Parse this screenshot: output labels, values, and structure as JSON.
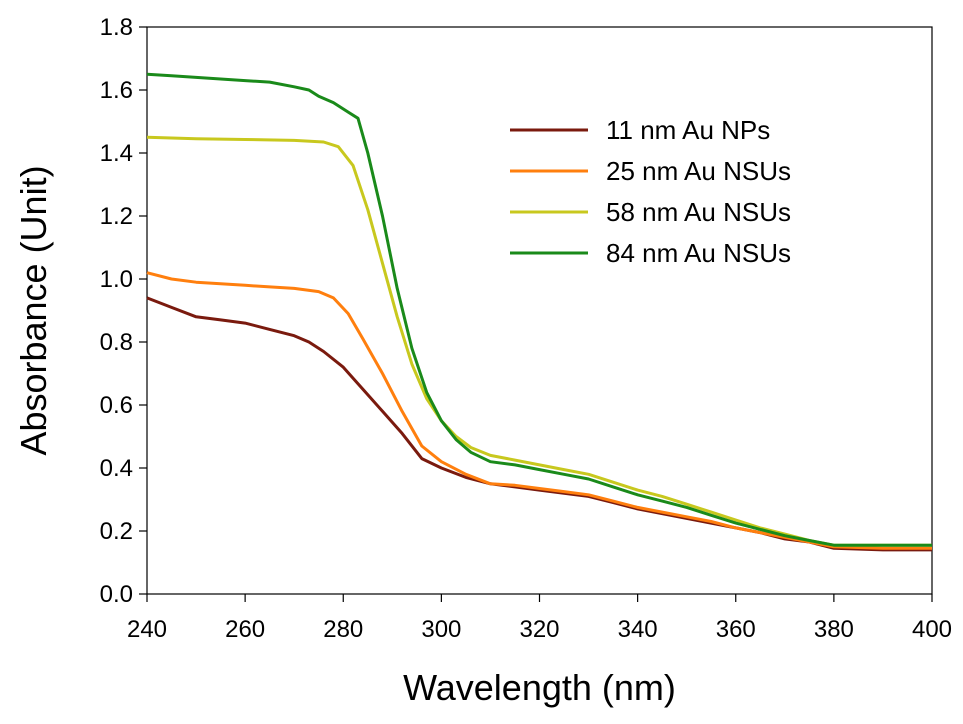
{
  "chart_data": {
    "type": "line",
    "title": "",
    "xlabel": "Wavelength (nm)",
    "ylabel": "Absorbance (Unit)",
    "xlim": [
      240,
      400
    ],
    "ylim": [
      0.0,
      1.8
    ],
    "xticks": [
      240,
      260,
      280,
      300,
      320,
      340,
      360,
      380,
      400
    ],
    "xtick_labels": [
      "240",
      "260",
      "280",
      "300",
      "320",
      "340",
      "360",
      "380",
      "400"
    ],
    "yticks": [
      0.0,
      0.2,
      0.4,
      0.6,
      0.8,
      1.0,
      1.2,
      1.4,
      1.6,
      1.8
    ],
    "ytick_labels": [
      "0.0",
      "0.2",
      "0.4",
      "0.6",
      "0.8",
      "1.0",
      "1.2",
      "1.4",
      "1.6",
      "1.8"
    ],
    "grid": false,
    "legend_position": "top-right",
    "series": [
      {
        "name": "11 nm Au NPs",
        "color": "#7a1a0e",
        "points": [
          [
            240,
            0.94
          ],
          [
            245,
            0.91
          ],
          [
            250,
            0.88
          ],
          [
            255,
            0.87
          ],
          [
            260,
            0.86
          ],
          [
            265,
            0.84
          ],
          [
            270,
            0.82
          ],
          [
            273,
            0.8
          ],
          [
            276,
            0.77
          ],
          [
            280,
            0.72
          ],
          [
            284,
            0.65
          ],
          [
            288,
            0.58
          ],
          [
            292,
            0.51
          ],
          [
            296,
            0.43
          ],
          [
            300,
            0.4
          ],
          [
            305,
            0.37
          ],
          [
            310,
            0.35
          ],
          [
            315,
            0.34
          ],
          [
            320,
            0.33
          ],
          [
            325,
            0.32
          ],
          [
            330,
            0.31
          ],
          [
            335,
            0.29
          ],
          [
            340,
            0.27
          ],
          [
            345,
            0.255
          ],
          [
            350,
            0.24
          ],
          [
            355,
            0.225
          ],
          [
            360,
            0.21
          ],
          [
            365,
            0.195
          ],
          [
            370,
            0.175
          ],
          [
            375,
            0.165
          ],
          [
            380,
            0.145
          ],
          [
            390,
            0.14
          ],
          [
            400,
            0.14
          ]
        ]
      },
      {
        "name": "25 nm Au NSUs",
        "color": "#ff7f0e",
        "points": [
          [
            240,
            1.02
          ],
          [
            245,
            1.0
          ],
          [
            250,
            0.99
          ],
          [
            255,
            0.985
          ],
          [
            260,
            0.98
          ],
          [
            265,
            0.975
          ],
          [
            270,
            0.97
          ],
          [
            275,
            0.96
          ],
          [
            278,
            0.94
          ],
          [
            281,
            0.89
          ],
          [
            284,
            0.81
          ],
          [
            288,
            0.7
          ],
          [
            292,
            0.58
          ],
          [
            296,
            0.47
          ],
          [
            300,
            0.42
          ],
          [
            305,
            0.38
          ],
          [
            310,
            0.35
          ],
          [
            315,
            0.345
          ],
          [
            320,
            0.335
          ],
          [
            325,
            0.325
          ],
          [
            330,
            0.315
          ],
          [
            335,
            0.295
          ],
          [
            340,
            0.275
          ],
          [
            345,
            0.26
          ],
          [
            350,
            0.245
          ],
          [
            355,
            0.23
          ],
          [
            360,
            0.21
          ],
          [
            365,
            0.195
          ],
          [
            370,
            0.18
          ],
          [
            375,
            0.165
          ],
          [
            380,
            0.15
          ],
          [
            390,
            0.145
          ],
          [
            400,
            0.145
          ]
        ]
      },
      {
        "name": "58 nm Au NSUs",
        "color": "#c8c81e",
        "points": [
          [
            240,
            1.45
          ],
          [
            250,
            1.445
          ],
          [
            260,
            1.443
          ],
          [
            270,
            1.44
          ],
          [
            276,
            1.435
          ],
          [
            279,
            1.42
          ],
          [
            282,
            1.36
          ],
          [
            285,
            1.22
          ],
          [
            288,
            1.05
          ],
          [
            291,
            0.88
          ],
          [
            294,
            0.73
          ],
          [
            297,
            0.62
          ],
          [
            300,
            0.55
          ],
          [
            303,
            0.5
          ],
          [
            306,
            0.465
          ],
          [
            310,
            0.44
          ],
          [
            315,
            0.425
          ],
          [
            320,
            0.41
          ],
          [
            325,
            0.395
          ],
          [
            330,
            0.38
          ],
          [
            335,
            0.355
          ],
          [
            340,
            0.33
          ],
          [
            345,
            0.31
          ],
          [
            350,
            0.285
          ],
          [
            355,
            0.26
          ],
          [
            360,
            0.235
          ],
          [
            365,
            0.21
          ],
          [
            370,
            0.19
          ],
          [
            375,
            0.17
          ],
          [
            380,
            0.155
          ],
          [
            390,
            0.155
          ],
          [
            400,
            0.155
          ]
        ]
      },
      {
        "name": "84 nm Au NSUs",
        "color": "#1a8a1a",
        "points": [
          [
            240,
            1.65
          ],
          [
            245,
            1.645
          ],
          [
            250,
            1.64
          ],
          [
            255,
            1.635
          ],
          [
            260,
            1.63
          ],
          [
            265,
            1.625
          ],
          [
            270,
            1.61
          ],
          [
            273,
            1.6
          ],
          [
            275,
            1.58
          ],
          [
            278,
            1.56
          ],
          [
            281,
            1.53
          ],
          [
            283,
            1.51
          ],
          [
            285,
            1.4
          ],
          [
            288,
            1.2
          ],
          [
            291,
            0.97
          ],
          [
            294,
            0.78
          ],
          [
            297,
            0.64
          ],
          [
            300,
            0.55
          ],
          [
            303,
            0.49
          ],
          [
            306,
            0.45
          ],
          [
            310,
            0.42
          ],
          [
            315,
            0.41
          ],
          [
            320,
            0.395
          ],
          [
            325,
            0.38
          ],
          [
            330,
            0.365
          ],
          [
            335,
            0.34
          ],
          [
            340,
            0.315
          ],
          [
            345,
            0.295
          ],
          [
            350,
            0.275
          ],
          [
            355,
            0.25
          ],
          [
            360,
            0.225
          ],
          [
            365,
            0.205
          ],
          [
            370,
            0.185
          ],
          [
            375,
            0.17
          ],
          [
            380,
            0.155
          ],
          [
            390,
            0.155
          ],
          [
            400,
            0.155
          ]
        ]
      }
    ]
  }
}
